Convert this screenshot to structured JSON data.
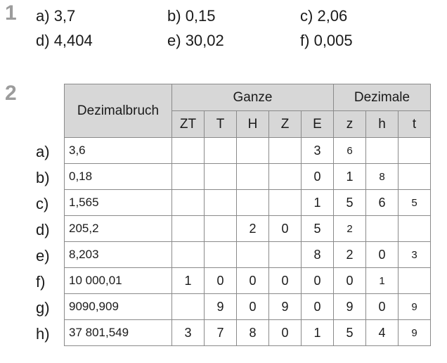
{
  "ex1": {
    "number": "1",
    "answers": [
      {
        "label": "a)",
        "value": "3,7"
      },
      {
        "label": "b)",
        "value": "0,15"
      },
      {
        "label": "c)",
        "value": "2,06"
      },
      {
        "label": "d)",
        "value": "4,404"
      },
      {
        "label": "e)",
        "value": "30,02"
      },
      {
        "label": "f)",
        "value": "0,005"
      }
    ]
  },
  "ex2": {
    "number": "2",
    "header": {
      "dezimalbruch": "Dezimalbruch",
      "ganze": "Ganze",
      "dezimale": "Dezimale",
      "columns": [
        "ZT",
        "T",
        "H",
        "Z",
        "E",
        "z",
        "h",
        "t"
      ]
    },
    "rows": [
      {
        "label": "a)",
        "fraction": "3,6",
        "digits": [
          "",
          "",
          "",
          "",
          "3",
          "6",
          "",
          ""
        ]
      },
      {
        "label": "b)",
        "fraction": "0,18",
        "digits": [
          "",
          "",
          "",
          "",
          "0",
          "1",
          "8",
          ""
        ]
      },
      {
        "label": "c)",
        "fraction": "1,565",
        "digits": [
          "",
          "",
          "",
          "",
          "1",
          "5",
          "6",
          "5"
        ]
      },
      {
        "label": "d)",
        "fraction": "205,2",
        "digits": [
          "",
          "",
          "2",
          "0",
          "5",
          "2",
          "",
          ""
        ]
      },
      {
        "label": "e)",
        "fraction": "8,203",
        "digits": [
          "",
          "",
          "",
          "",
          "8",
          "2",
          "0",
          "3"
        ]
      },
      {
        "label": "f)",
        "fraction": "10 000,01",
        "digits": [
          "1",
          "0",
          "0",
          "0",
          "0",
          "0",
          "1",
          ""
        ]
      },
      {
        "label": "g)",
        "fraction": "9090,909",
        "digits": [
          "",
          "9",
          "0",
          "9",
          "0",
          "9",
          "0",
          "9"
        ]
      },
      {
        "label": "h)",
        "fraction": "37 801,549",
        "digits": [
          "3",
          "7",
          "8",
          "0",
          "1",
          "5",
          "4",
          "9"
        ]
      }
    ]
  }
}
